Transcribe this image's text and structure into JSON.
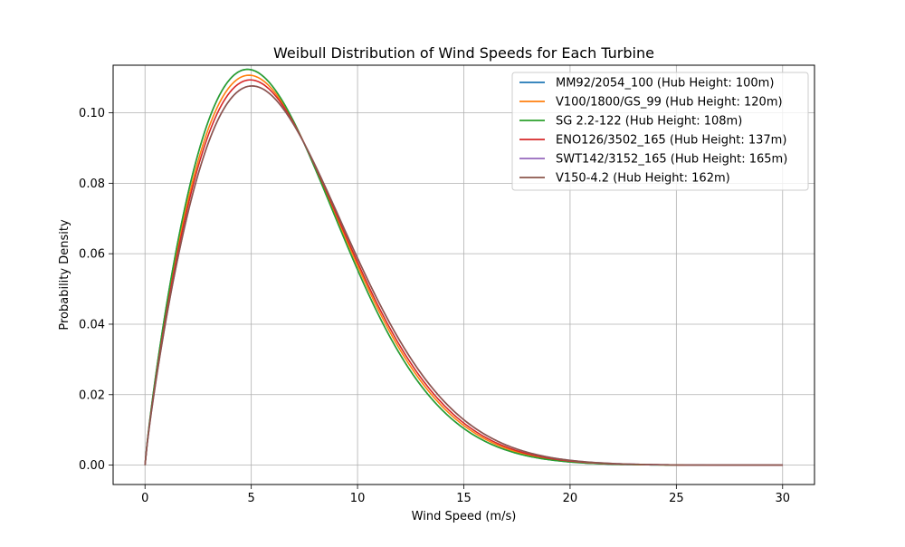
{
  "chart_data": {
    "type": "line",
    "title": "Weibull Distribution of Wind Speeds for Each Turbine",
    "xlabel": "Wind Speed (m/s)",
    "ylabel": "Probability Density",
    "xlim": [
      -1.5,
      31.5
    ],
    "ylim": [
      -0.0055,
      0.1135
    ],
    "xticks": [
      0,
      5,
      10,
      15,
      20,
      25,
      30
    ],
    "xtick_labels": [
      "0",
      "5",
      "10",
      "15",
      "20",
      "25",
      "30"
    ],
    "yticks": [
      0.0,
      0.02,
      0.04,
      0.06,
      0.08,
      0.1
    ],
    "ytick_labels": [
      "0.00",
      "0.02",
      "0.04",
      "0.06",
      "0.08",
      "0.10"
    ],
    "grid": true,
    "legend_position": "upper right",
    "x_sample_range": [
      0,
      30
    ],
    "series": [
      {
        "name": "MM92/2054_100 (Hub Height: 100m)",
        "color": "#1f77b4",
        "distribution": "weibull",
        "shape_k": 1.86,
        "scale_c": 7.3
      },
      {
        "name": "V100/1800/GS_99 (Hub Height: 120m)",
        "color": "#ff7f0e",
        "distribution": "weibull",
        "shape_k": 1.86,
        "scale_c": 7.41
      },
      {
        "name": "SG 2.2-122 (Hub Height: 108m)",
        "color": "#2ca02c",
        "distribution": "weibull",
        "shape_k": 1.86,
        "scale_c": 7.3
      },
      {
        "name": "ENO126/3502_165 (Hub Height: 137m)",
        "color": "#d62728",
        "distribution": "weibull",
        "shape_k": 1.86,
        "scale_c": 7.5
      },
      {
        "name": "SWT142/3152_165 (Hub Height: 165m)",
        "color": "#9467bd",
        "distribution": "weibull",
        "shape_k": 1.86,
        "scale_c": 7.62
      },
      {
        "name": "V150-4.2 (Hub Height: 162m)",
        "color": "#8c564b",
        "distribution": "weibull",
        "shape_k": 1.86,
        "scale_c": 7.62
      }
    ]
  }
}
